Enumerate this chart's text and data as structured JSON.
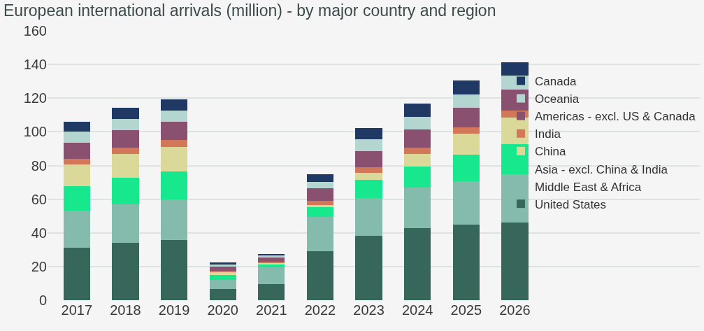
{
  "chart_data": {
    "type": "bar",
    "title": "European international arrivals (million) - by major country and region",
    "stacked": true,
    "categories": [
      "2017",
      "2018",
      "2019",
      "2020",
      "2021",
      "2022",
      "2023",
      "2024",
      "2025",
      "2026"
    ],
    "series": [
      {
        "name": "United States",
        "color": "#37675a",
        "values": [
          31.1,
          34,
          35.7,
          6.6,
          9.5,
          29.3,
          38.4,
          42.8,
          44.9,
          46.3
        ]
      },
      {
        "name": "Middle East & Africa",
        "color": "#84bbad",
        "values": [
          21.9,
          22.9,
          24,
          5.5,
          10.2,
          20.2,
          22.4,
          24,
          25.7,
          28.3
        ]
      },
      {
        "name": "Asia - excl. China & India",
        "color": "#17e88e",
        "values": [
          14.6,
          15.8,
          16.6,
          3,
          1.8,
          5.6,
          10.5,
          12.7,
          15.7,
          18
        ]
      },
      {
        "name": "China",
        "color": "#dad99a",
        "values": [
          13.2,
          14,
          14.9,
          1.6,
          0.5,
          1.4,
          4.4,
          7.5,
          12.6,
          15.8
        ]
      },
      {
        "name": "India",
        "color": "#d27858",
        "values": [
          3.3,
          3.7,
          3.9,
          0.9,
          0.9,
          2.5,
          3.2,
          3.7,
          3.9,
          4.4
        ]
      },
      {
        "name": "Americas - excl. US & Canada",
        "color": "#8a5070",
        "values": [
          9.3,
          10.6,
          10.8,
          2.5,
          2.8,
          7.5,
          9.8,
          10.6,
          11.4,
          12.2
        ]
      },
      {
        "name": "Oceania",
        "color": "#b3d7d0",
        "values": [
          6.7,
          6.7,
          6.8,
          1.2,
          0.7,
          3.8,
          6.8,
          7.6,
          8.1,
          8.2
        ]
      },
      {
        "name": "Canada",
        "color": "#1f3864",
        "values": [
          5.9,
          6.4,
          6.5,
          1.2,
          1.1,
          4.7,
          6.7,
          7.7,
          8.2,
          8.2
        ]
      }
    ],
    "ylim": [
      0,
      160
    ],
    "yticks": [
      0,
      20,
      40,
      60,
      80,
      100,
      120,
      140,
      160
    ],
    "grid": "y",
    "legend": "right"
  }
}
